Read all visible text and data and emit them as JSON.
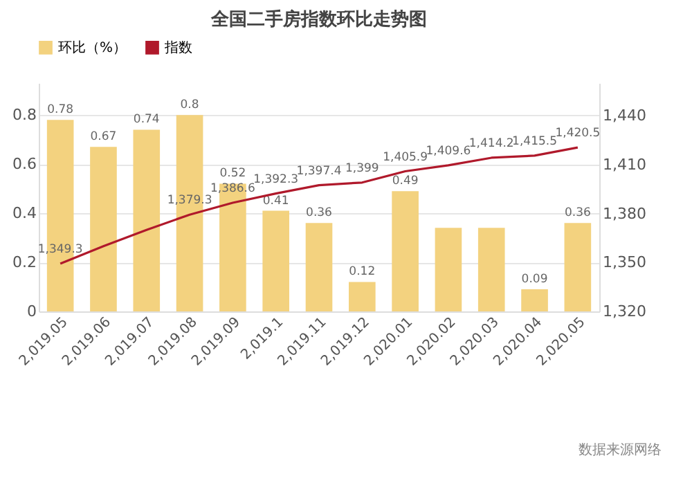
{
  "chart_data": {
    "type": "bar",
    "title": "全国二手房指数环比走势图",
    "categories": [
      "2,019.05",
      "2,019.06",
      "2,019.07",
      "2,019.08",
      "2,019.09",
      "2,019.1",
      "2,019.11",
      "2,019.12",
      "2,020.01",
      "2,020.02",
      "2,020.03",
      "2,020.04",
      "2,020.05"
    ],
    "series": [
      {
        "name": "环比（%）",
        "color": "#f3d27f",
        "values": [
          0.78,
          0.67,
          0.74,
          0.8,
          0.52,
          0.41,
          0.36,
          0.12,
          0.49,
          0.34,
          0.34,
          0.09,
          0.36
        ],
        "value_labels": [
          "0.78",
          "0.67",
          "0.74",
          "0.8",
          "0.52",
          "0.41",
          "0.36",
          "0.12",
          "0.49",
          null,
          null,
          "0.09",
          "0.36"
        ]
      },
      {
        "name": "指数",
        "type": "line",
        "axis": "y2",
        "color": "#b0192b",
        "values": [
          1349.3,
          1360,
          1370,
          1379.3,
          1386.6,
          1392.3,
          1397.4,
          1399,
          1405.9,
          1409.6,
          1414.2,
          1415.5,
          1420.5
        ],
        "value_labels": [
          "1,349.3",
          null,
          null,
          "1,379.3",
          "1,386.6",
          "1,392.3",
          "1,397.4",
          "1,399",
          "1,405.9",
          "1,409.6",
          "1,414.2",
          "1,415.5",
          "1,420.5"
        ]
      }
    ],
    "ylim": [
      0,
      0.93
    ],
    "yticks": [
      0,
      0.2,
      0.4,
      0.6,
      0.8
    ],
    "y2lim": [
      1320,
      1460
    ],
    "y2ticks": [
      {
        "value": 1320,
        "label": "1,320"
      },
      {
        "value": 1350,
        "label": "1,350"
      },
      {
        "value": 1380,
        "label": "1,380"
      },
      {
        "value": 1410,
        "label": "1,410"
      },
      {
        "value": 1440,
        "label": "1,440"
      }
    ],
    "grid": "y",
    "legend": "top",
    "annotations": [
      "数据来源网络"
    ]
  }
}
